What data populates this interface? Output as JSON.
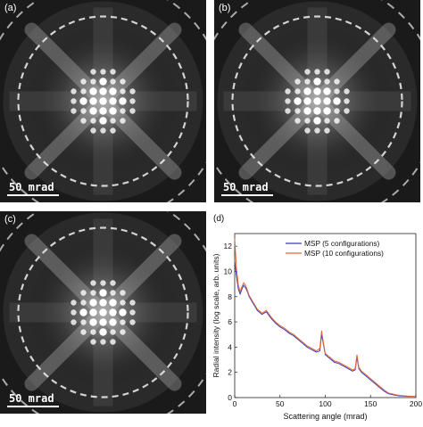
{
  "panels": [
    {
      "label": "(a)",
      "scale_bar": "50 mrad"
    },
    {
      "label": "(b)",
      "scale_bar": "50 mrad"
    },
    {
      "label": "(c)",
      "scale_bar": "50 mrad"
    }
  ],
  "chart_data": {
    "label": "(d)",
    "type": "line",
    "xlabel": "Scattering angle (mrad)",
    "ylabel": "Radial intensity (log scale, arb. units)",
    "xlim": [
      0,
      200
    ],
    "ylim": [
      0,
      13
    ],
    "xticks": [
      0,
      50,
      100,
      150,
      200
    ],
    "yticks": [
      0,
      2,
      4,
      6,
      8,
      10,
      12
    ],
    "legend_position": "top-right",
    "series": [
      {
        "name": "MSP (5 configurations)",
        "color": "#3a3ab8",
        "x": [
          0,
          2,
          4,
          6,
          8,
          10,
          12,
          14,
          16,
          20,
          25,
          30,
          35,
          40,
          45,
          50,
          55,
          60,
          65,
          70,
          75,
          80,
          85,
          90,
          94,
          96,
          98,
          100,
          105,
          110,
          115,
          120,
          125,
          130,
          133,
          135,
          137,
          140,
          145,
          150,
          155,
          160,
          165,
          170,
          180,
          190,
          200
        ],
        "values": [
          10.8,
          9.6,
          8.6,
          8.2,
          8.6,
          8.9,
          8.7,
          8.4,
          8.0,
          7.5,
          6.9,
          6.6,
          6.8,
          6.3,
          5.9,
          5.6,
          5.4,
          5.1,
          4.9,
          4.6,
          4.3,
          4.0,
          3.8,
          3.6,
          3.7,
          5.0,
          4.2,
          3.4,
          3.1,
          2.8,
          2.7,
          2.5,
          2.3,
          2.1,
          2.2,
          3.2,
          2.3,
          2.0,
          1.7,
          1.4,
          1.1,
          0.8,
          0.5,
          0.3,
          0.15,
          0.1,
          0.1
        ]
      },
      {
        "name": "MSP (10 configurations)",
        "color": "#e0683a",
        "x": [
          0,
          2,
          4,
          6,
          8,
          10,
          12,
          14,
          16,
          20,
          25,
          30,
          35,
          40,
          45,
          50,
          55,
          60,
          65,
          70,
          75,
          80,
          85,
          90,
          94,
          96,
          98,
          100,
          105,
          110,
          115,
          120,
          125,
          130,
          133,
          135,
          137,
          140,
          145,
          150,
          155,
          160,
          165,
          170,
          180,
          190,
          200
        ],
        "values": [
          12.6,
          10.2,
          8.9,
          8.4,
          8.8,
          9.1,
          8.9,
          8.5,
          8.1,
          7.6,
          7.0,
          6.7,
          6.9,
          6.4,
          6.0,
          5.7,
          5.5,
          5.2,
          5.0,
          4.7,
          4.4,
          4.1,
          3.9,
          3.7,
          3.9,
          5.3,
          4.3,
          3.5,
          3.2,
          2.9,
          2.8,
          2.6,
          2.4,
          2.2,
          2.3,
          3.4,
          2.4,
          2.1,
          1.8,
          1.5,
          1.2,
          0.9,
          0.6,
          0.35,
          0.2,
          0.12,
          0.1
        ]
      }
    ]
  }
}
